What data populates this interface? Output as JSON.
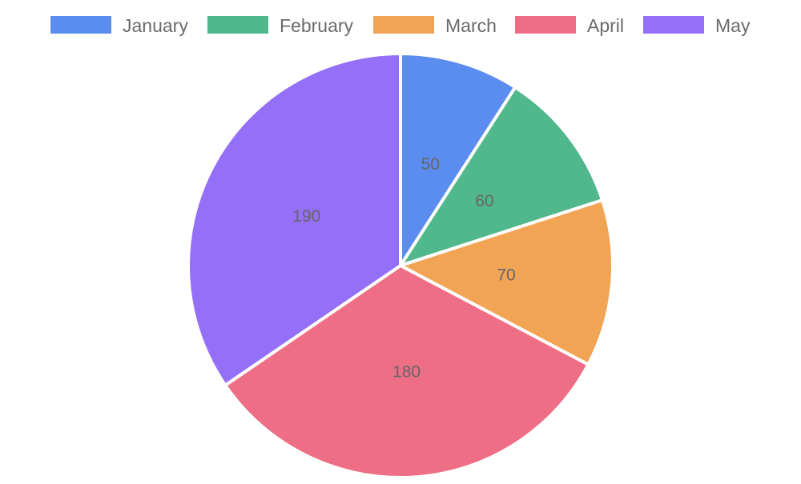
{
  "chart_data": {
    "type": "pie",
    "categories": [
      "January",
      "February",
      "March",
      "April",
      "May"
    ],
    "values": [
      50,
      60,
      70,
      180,
      190
    ],
    "colors": [
      "#5b8cf0",
      "#51b78c",
      "#f2a455",
      "#ee6e85",
      "#9370f7"
    ],
    "data_labels": [
      "50",
      "60",
      "70",
      "180",
      "190"
    ],
    "legend": {
      "position": "top",
      "items": [
        "January",
        "February",
        "March",
        "April",
        "May"
      ]
    },
    "start_angle": "12 o'clock",
    "direction": "clockwise"
  }
}
